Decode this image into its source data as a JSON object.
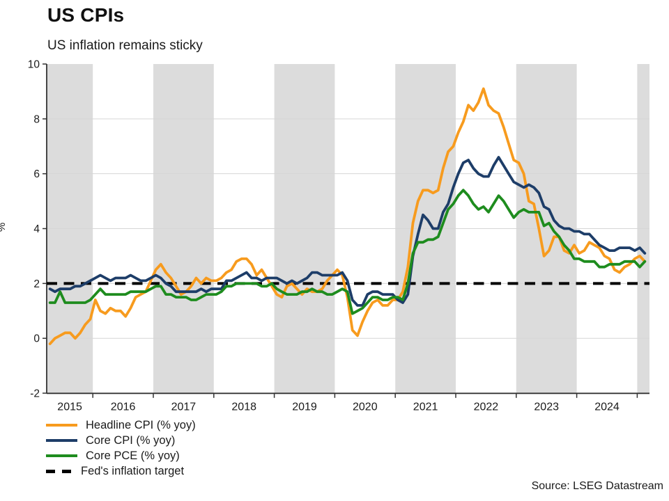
{
  "title": "US CPIs",
  "subtitle": "US inflation remains sticky",
  "source": "Source: LSEG Datastream",
  "colors": {
    "headline_cpi": "#F79B1E",
    "core_cpi": "#1D3D68",
    "core_pce": "#1E8C1E",
    "target": "#000000",
    "band": "#DCDCDC",
    "gridline": "#D6D6D6",
    "axis": "#333333",
    "tick_text": "#1A1A1A"
  },
  "legend": [
    {
      "label": "Headline CPI (% yoy)",
      "color": "#F79B1E",
      "dashed": false
    },
    {
      "label": "Core CPI (% yoy)",
      "color": "#1D3D68",
      "dashed": false
    },
    {
      "label": "Core PCE (% yoy)",
      "color": "#1E8C1E",
      "dashed": false
    },
    {
      "label": "Fed's inflation target",
      "color": "#000000",
      "dashed": true
    }
  ],
  "chart_data": {
    "type": "line",
    "title": "US CPIs",
    "subtitle": "US inflation remains sticky",
    "ylabel": "%",
    "ylim": [
      -2,
      10
    ],
    "yticks": [
      10,
      8,
      6,
      4,
      2,
      0,
      -2
    ],
    "year_labels": [
      "2015",
      "2016",
      "2017",
      "2018",
      "2019",
      "2020",
      "2021",
      "2022",
      "2023",
      "2024"
    ],
    "shaded_years": [
      2015,
      2017,
      2019,
      2021,
      2023,
      2025
    ],
    "grid": "horizontal-only",
    "legend_position": "bottom-left",
    "frequency": "monthly",
    "start": "2015-04",
    "end": "2025-02",
    "target_line": {
      "name": "Fed's inflation target",
      "value": 2
    },
    "series": [
      {
        "name": "Headline CPI (% yoy)",
        "color": "#F79B1E",
        "values": [
          -0.2,
          0.0,
          0.1,
          0.2,
          0.2,
          0.0,
          0.2,
          0.5,
          0.7,
          1.4,
          1.0,
          0.9,
          1.1,
          1.0,
          1.0,
          0.8,
          1.1,
          1.5,
          1.6,
          1.7,
          2.1,
          2.5,
          2.7,
          2.4,
          2.2,
          1.9,
          1.6,
          1.7,
          1.9,
          2.2,
          2.0,
          2.2,
          2.1,
          2.1,
          2.2,
          2.4,
          2.5,
          2.8,
          2.9,
          2.9,
          2.7,
          2.3,
          2.5,
          2.2,
          1.9,
          1.6,
          1.5,
          1.9,
          2.0,
          1.8,
          1.6,
          1.8,
          1.7,
          1.7,
          1.8,
          2.1,
          2.3,
          2.5,
          2.3,
          1.5,
          0.3,
          0.1,
          0.6,
          1.0,
          1.3,
          1.4,
          1.2,
          1.2,
          1.4,
          1.4,
          1.7,
          2.6,
          4.2,
          5.0,
          5.4,
          5.4,
          5.3,
          5.4,
          6.2,
          6.8,
          7.0,
          7.5,
          7.9,
          8.5,
          8.3,
          8.6,
          9.1,
          8.5,
          8.3,
          8.2,
          7.7,
          7.1,
          6.5,
          6.4,
          6.0,
          5.0,
          4.9,
          4.0,
          3.0,
          3.2,
          3.7,
          3.7,
          3.2,
          3.1,
          3.4,
          3.1,
          3.2,
          3.5,
          3.4,
          3.3,
          3.0,
          2.9,
          2.5,
          2.4,
          2.6,
          2.7,
          2.9,
          3.0,
          2.8
        ]
      },
      {
        "name": "Core CPI (% yoy)",
        "color": "#1D3D68",
        "values": [
          1.8,
          1.7,
          1.8,
          1.8,
          1.8,
          1.9,
          1.9,
          2.0,
          2.1,
          2.2,
          2.3,
          2.2,
          2.1,
          2.2,
          2.2,
          2.2,
          2.3,
          2.2,
          2.1,
          2.1,
          2.2,
          2.3,
          2.2,
          2.0,
          1.9,
          1.7,
          1.7,
          1.7,
          1.7,
          1.7,
          1.8,
          1.7,
          1.8,
          1.8,
          1.8,
          2.1,
          2.1,
          2.2,
          2.3,
          2.4,
          2.2,
          2.2,
          2.1,
          2.2,
          2.2,
          2.2,
          2.1,
          2.0,
          2.1,
          2.0,
          2.1,
          2.2,
          2.4,
          2.4,
          2.3,
          2.3,
          2.3,
          2.3,
          2.4,
          2.1,
          1.4,
          1.2,
          1.2,
          1.6,
          1.7,
          1.7,
          1.6,
          1.6,
          1.6,
          1.4,
          1.3,
          1.6,
          3.0,
          3.8,
          4.5,
          4.3,
          4.0,
          4.0,
          4.6,
          4.9,
          5.5,
          6.0,
          6.4,
          6.5,
          6.2,
          6.0,
          5.9,
          5.9,
          6.3,
          6.6,
          6.3,
          6.0,
          5.7,
          5.6,
          5.5,
          5.6,
          5.5,
          5.3,
          4.8,
          4.7,
          4.3,
          4.1,
          4.0,
          4.0,
          3.9,
          3.9,
          3.8,
          3.8,
          3.6,
          3.4,
          3.3,
          3.2,
          3.2,
          3.3,
          3.3,
          3.3,
          3.2,
          3.3,
          3.1
        ]
      },
      {
        "name": "Core PCE (% yoy)",
        "color": "#1E8C1E",
        "values": [
          1.3,
          1.3,
          1.7,
          1.3,
          1.3,
          1.3,
          1.3,
          1.3,
          1.4,
          1.6,
          1.8,
          1.6,
          1.6,
          1.6,
          1.6,
          1.6,
          1.7,
          1.7,
          1.7,
          1.7,
          1.8,
          1.9,
          1.9,
          1.6,
          1.6,
          1.5,
          1.5,
          1.5,
          1.4,
          1.4,
          1.5,
          1.6,
          1.6,
          1.6,
          1.7,
          1.9,
          1.9,
          2.0,
          2.0,
          2.0,
          2.0,
          2.0,
          1.9,
          1.9,
          2.0,
          1.8,
          1.7,
          1.6,
          1.6,
          1.6,
          1.7,
          1.7,
          1.8,
          1.7,
          1.7,
          1.6,
          1.6,
          1.7,
          1.8,
          1.7,
          0.9,
          1.0,
          1.1,
          1.3,
          1.5,
          1.5,
          1.4,
          1.4,
          1.5,
          1.5,
          1.4,
          2.0,
          3.1,
          3.5,
          3.5,
          3.6,
          3.6,
          3.7,
          4.2,
          4.7,
          4.9,
          5.2,
          5.4,
          5.2,
          4.9,
          4.7,
          4.8,
          4.6,
          4.9,
          5.2,
          5.0,
          4.7,
          4.4,
          4.6,
          4.7,
          4.6,
          4.6,
          4.6,
          4.1,
          4.2,
          3.9,
          3.7,
          3.4,
          3.2,
          2.9,
          2.9,
          2.8,
          2.8,
          2.8,
          2.6,
          2.6,
          2.7,
          2.7,
          2.7,
          2.8,
          2.8,
          2.8,
          2.6,
          2.8
        ]
      }
    ]
  }
}
